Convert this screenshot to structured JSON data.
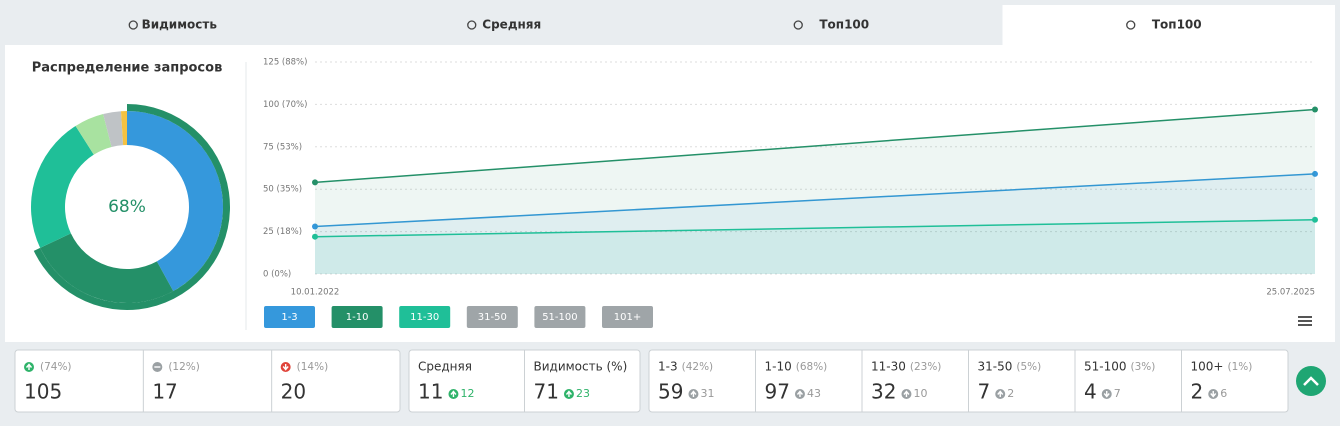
{
  "tabs": [
    "Видимость",
    "Средняя",
    "Топ100",
    "Топ100"
  ],
  "active_tab": 3,
  "donut": {
    "title": "Распределение запросов",
    "center_label": "68%",
    "segments": [
      {
        "value": 42,
        "color": "#3598dc"
      },
      {
        "value": 26,
        "color": "#249068"
      },
      {
        "value": 23,
        "color": "#1fbf98"
      },
      {
        "value": 5,
        "color": "#a8e2a0"
      },
      {
        "value": 3,
        "color": "#bfc3c6"
      },
      {
        "value": 1,
        "color": "#f5c242"
      }
    ],
    "outer_ring": {
      "value": 68,
      "color": "#249068"
    }
  },
  "line_chart": {
    "type": "line",
    "x": [
      "10.01.2022",
      "25.07.2025"
    ],
    "series": [
      {
        "name": "1-3",
        "color": "#3598dc",
        "values": [
          28,
          59
        ]
      },
      {
        "name": "1-10",
        "color": "#249068",
        "values": [
          54,
          97
        ]
      },
      {
        "name": "11-30",
        "color": "#1fbf98",
        "values": [
          22,
          32
        ]
      }
    ],
    "inactive_series": [
      {
        "name": "31-50"
      },
      {
        "name": "51-100"
      },
      {
        "name": "101+"
      }
    ],
    "inactive_color": "#9fa5a8",
    "ylim": [
      0,
      125
    ],
    "yticks": [
      {
        "value": 0,
        "label": "0 (0%)"
      },
      {
        "value": 25,
        "label": "25 (18%)"
      },
      {
        "value": 50,
        "label": "50 (35%)"
      },
      {
        "value": 75,
        "label": "75 (53%)"
      },
      {
        "value": 100,
        "label": "100 (70%)"
      },
      {
        "value": 125,
        "label": "125 (88%)"
      }
    ],
    "grid": true
  },
  "stats": {
    "counts": [
      {
        "share": "(74%)",
        "value": 105,
        "trend": "up"
      },
      {
        "share": "(12%)",
        "value": 17,
        "trend": "flat"
      },
      {
        "share": "(14%)",
        "value": 20,
        "trend": "down"
      }
    ],
    "summary": [
      {
        "label": "Средняя",
        "value": 11,
        "change": 12,
        "trend": "up"
      },
      {
        "label": "Видимость (%)",
        "value": 71,
        "change": 23,
        "trend": "up"
      }
    ],
    "ranges": [
      {
        "label": "1-3",
        "share": "(42%)",
        "value": 59,
        "change": 31,
        "trend": "up"
      },
      {
        "label": "1-10",
        "share": "(68%)",
        "value": 97,
        "change": 43,
        "trend": "up"
      },
      {
        "label": "11-30",
        "share": "(23%)",
        "value": 32,
        "change": 10,
        "trend": "up"
      },
      {
        "label": "31-50",
        "share": "(5%)",
        "value": 7,
        "change": 2,
        "trend": "up"
      },
      {
        "label": "51-100",
        "share": "(3%)",
        "value": 4,
        "change": 7,
        "trend": "down"
      },
      {
        "label": "100+",
        "share": "(1%)",
        "value": 2,
        "change": 6,
        "trend": "down"
      }
    ]
  }
}
